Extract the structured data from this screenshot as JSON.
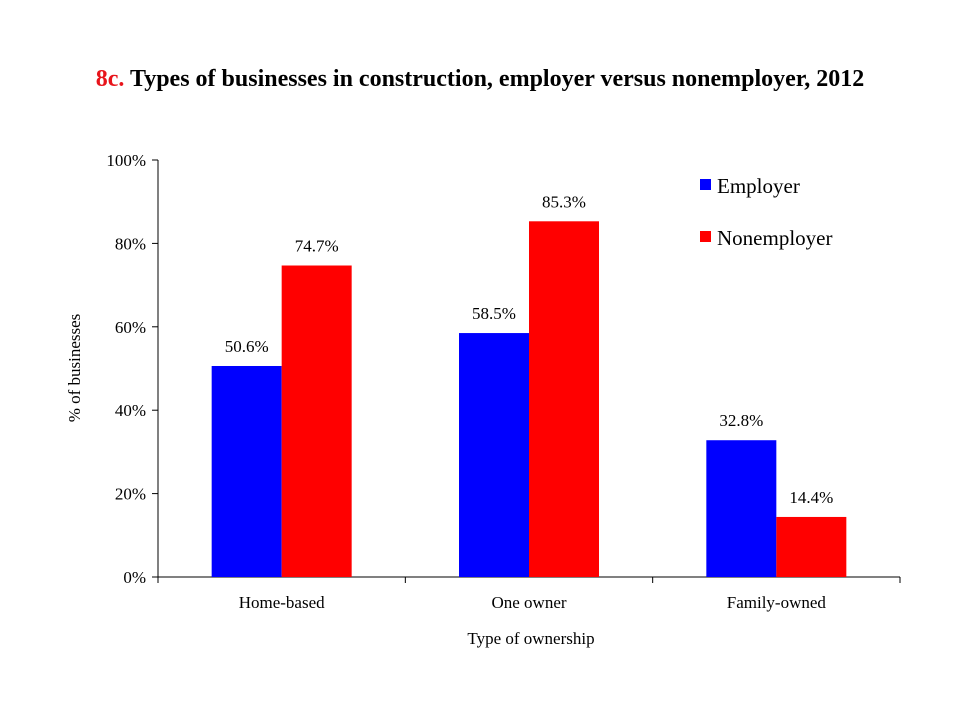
{
  "chart_data": {
    "type": "bar",
    "title_prefix": "8c.",
    "title": "Types of businesses in construction, employer versus nonemployer, 2012",
    "xlabel": "Type of ownership",
    "ylabel": "% of businesses",
    "categories": [
      "Home-based",
      "One owner",
      "Family-owned"
    ],
    "series": [
      {
        "name": "Employer",
        "color": "#0000ff",
        "values": [
          50.6,
          58.5,
          32.8
        ],
        "labels": [
          "50.6%",
          "58.5%",
          "32.8%"
        ]
      },
      {
        "name": "Nonemployer",
        "color": "#ff0000",
        "values": [
          74.7,
          85.3,
          14.4
        ],
        "labels": [
          "74.7%",
          "85.3%",
          "14.4%"
        ]
      }
    ],
    "ylim": [
      0,
      100
    ],
    "yticks": [
      0,
      20,
      40,
      60,
      80,
      100
    ],
    "ytick_labels": [
      "0%",
      "20%",
      "40%",
      "60%",
      "80%",
      "100%"
    ],
    "grid": false,
    "legend_position": "top-right"
  }
}
